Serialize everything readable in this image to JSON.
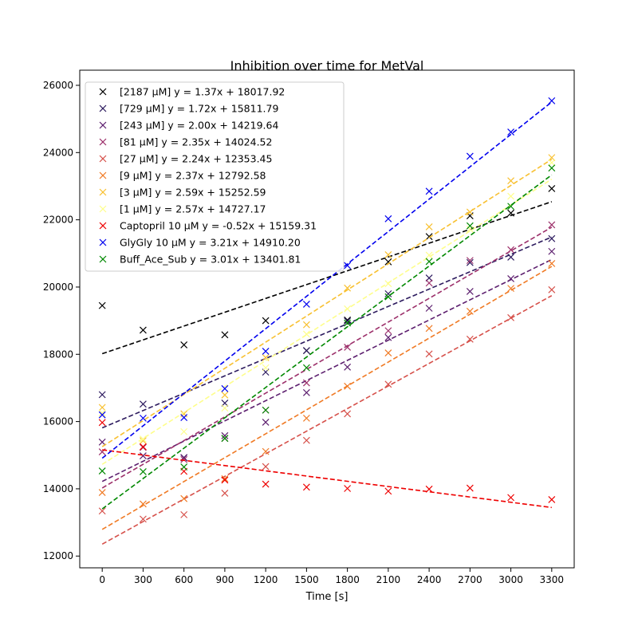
{
  "chart_data": {
    "type": "scatter",
    "title": "Inhibition over time for MetVal",
    "xlabel": "Time [s]",
    "ylabel": "",
    "x": [
      0,
      300,
      600,
      900,
      1200,
      1500,
      1800,
      2100,
      2400,
      2700,
      3000,
      3300
    ],
    "xticks": [
      "0",
      "300",
      "600",
      "900",
      "1200",
      "1500",
      "1800",
      "2100",
      "2400",
      "2700",
      "3000",
      "3300"
    ],
    "yticks": [
      "12000",
      "14000",
      "16000",
      "18000",
      "20000",
      "22000",
      "24000",
      "26000"
    ],
    "xlim": [
      -165,
      3465
    ],
    "ylim": [
      11650,
      26450
    ],
    "grid": false,
    "legend_position": "top-left",
    "series": [
      {
        "name": "[2187 µM] y = 1.37x + 18017.92",
        "color": "#000000",
        "slope": 1.37,
        "intercept": 18017.92,
        "values": [
          19450,
          18720,
          18280,
          18580,
          19000,
          18110,
          19020,
          20750,
          21500,
          22120,
          22200,
          22930
        ]
      },
      {
        "name": "[729 µM] y = 1.72x + 15811.79",
        "color": "#2c1a5e",
        "slope": 1.72,
        "intercept": 15811.79,
        "values": [
          16800,
          16520,
          14920,
          16550,
          17470,
          18110,
          18990,
          19800,
          20270,
          20730,
          20890,
          21440
        ]
      },
      {
        "name": "[243 µM] y = 2.00x + 14219.64",
        "color": "#5c1e6e",
        "slope": 2.0,
        "intercept": 14219.64,
        "values": [
          15390,
          14980,
          14930,
          15580,
          15980,
          16860,
          17620,
          18500,
          19370,
          19870,
          20250,
          21060
        ]
      },
      {
        "name": "[81 µM] y = 2.35x + 14024.52",
        "color": "#9c2f6a",
        "slope": 2.35,
        "intercept": 14024.52,
        "values": [
          15100,
          15230,
          14870,
          15500,
          16340,
          17150,
          18210,
          18700,
          20120,
          20790,
          21110,
          21850
        ]
      },
      {
        "name": "[27 µM] y = 2.24x + 12353.45",
        "color": "#d6504a",
        "slope": 2.24,
        "intercept": 12353.45,
        "values": [
          13340,
          13100,
          13230,
          13870,
          14660,
          15440,
          16230,
          17110,
          18010,
          18450,
          19090,
          19920
        ]
      },
      {
        "name": "[9 µM] y = 2.37x + 12792.58",
        "color": "#f07a24",
        "slope": 2.37,
        "intercept": 12792.58,
        "values": [
          13890,
          13550,
          13710,
          14300,
          15110,
          16100,
          17050,
          18040,
          18770,
          19280,
          19960,
          20700
        ]
      },
      {
        "name": "[3 µM] y = 2.59x + 15252.59",
        "color": "#f8c030",
        "slope": 2.59,
        "intercept": 15252.59,
        "values": [
          16420,
          15430,
          16230,
          16790,
          17900,
          18880,
          19970,
          20960,
          21790,
          22230,
          23160,
          23850
        ]
      },
      {
        "name": "[1 µM] y = 2.57x + 14727.17",
        "color": "#fefe8c",
        "slope": 2.57,
        "intercept": 14727.17,
        "values": [
          16250,
          15480,
          15700,
          16400,
          17600,
          18600,
          19350,
          20100,
          20950,
          21720,
          22700,
          23700
        ]
      },
      {
        "name": "Captopril 10 µM y = -0.52x + 15159.31",
        "color": "#ee0000",
        "slope": -0.52,
        "intercept": 15159.31,
        "values": [
          15970,
          15250,
          14520,
          14260,
          14140,
          14050,
          14010,
          13930,
          13990,
          14020,
          13740,
          13680
        ]
      },
      {
        "name": "GlyGly 10 µM y = 3.21x + 14910.20",
        "color": "#0000ee",
        "slope": 3.21,
        "intercept": 14910.2,
        "values": [
          16200,
          16100,
          16120,
          16980,
          18090,
          19490,
          20640,
          22030,
          22850,
          23890,
          24610,
          25540
        ]
      },
      {
        "name": "Buff_Ace_Sub y = 3.01x + 13401.81",
        "color": "#008800",
        "slope": 3.01,
        "intercept": 13401.81,
        "values": [
          14530,
          14510,
          14650,
          15500,
          16340,
          17600,
          18930,
          19710,
          20760,
          21820,
          22400,
          23540
        ]
      }
    ]
  }
}
